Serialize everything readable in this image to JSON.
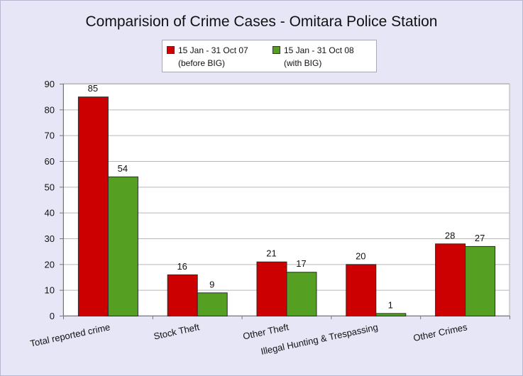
{
  "chart_data": {
    "type": "bar",
    "title": "Comparision of Crime Cases - Omitara Police Station",
    "xlabel": "",
    "ylabel": "",
    "categories": [
      "Total reported crime",
      "Stock Theft",
      "Other Theft",
      "Illegal Hunting & Trespassing",
      "Other Crimes"
    ],
    "series": [
      {
        "name": "15 Jan - 31 Oct 07",
        "name_sub": "(before BIG)",
        "values": [
          85,
          16,
          21,
          20,
          28
        ],
        "color": "#cc0000"
      },
      {
        "name": "15 Jan - 31 Oct 08",
        "name_sub": "(with BIG)",
        "values": [
          54,
          9,
          17,
          1,
          27
        ],
        "color": "#55a022"
      }
    ],
    "ylim": [
      0,
      90
    ],
    "yticks": [
      0,
      10,
      20,
      30,
      40,
      50,
      60,
      70,
      80,
      90
    ],
    "grid": true,
    "legend": "top-center",
    "background": "#e6e6f7",
    "plot_background": "#ffffff"
  }
}
